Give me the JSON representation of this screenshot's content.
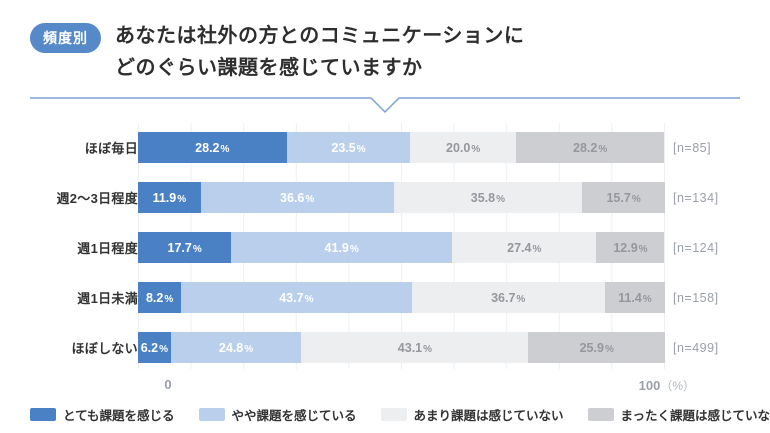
{
  "header": {
    "badge": "頻度別",
    "title_lines": [
      "あなたは社外の方とのコミュニケーションに",
      "どのぐらい課題を感じていますか"
    ]
  },
  "colors": {
    "accent_blue": "#5589c8",
    "divider_blue": "#7ba0d6",
    "series": [
      "#4a80c4",
      "#b9cfec",
      "#edeef0",
      "#cdced2"
    ],
    "label_on_dark": "#ffffff",
    "label_on_light": "#95979d"
  },
  "chart_data": {
    "type": "bar",
    "stacked": true,
    "orientation": "horizontal",
    "title": "あなたは社外の方とのコミュニケーションにどのぐらい課題を感じていますか（頻度別）",
    "categories": [
      "ほぼ毎日",
      "週2〜3日程度",
      "週1日程度",
      "週1日未満",
      "ほぼしない"
    ],
    "n_labels": [
      "[n=85]",
      "[n=134]",
      "[n=124]",
      "[n=158]",
      "[n=499]"
    ],
    "series": [
      {
        "name": "とても課題を感じる",
        "values": [
          28.2,
          11.9,
          17.7,
          8.2,
          6.2
        ]
      },
      {
        "name": "やや課題を感じている",
        "values": [
          23.5,
          36.6,
          41.9,
          43.7,
          24.8
        ]
      },
      {
        "name": "あまり課題は感じていない",
        "values": [
          20.0,
          35.8,
          27.4,
          36.7,
          43.1
        ]
      },
      {
        "name": "まったく課題は感じていない",
        "values": [
          28.2,
          15.7,
          12.9,
          11.4,
          25.9
        ]
      }
    ],
    "xlim": [
      0,
      100
    ],
    "grid": true,
    "legend_position": "bottom",
    "axis": {
      "min_label": "0",
      "max_label": "100",
      "unit": "（%）"
    }
  }
}
